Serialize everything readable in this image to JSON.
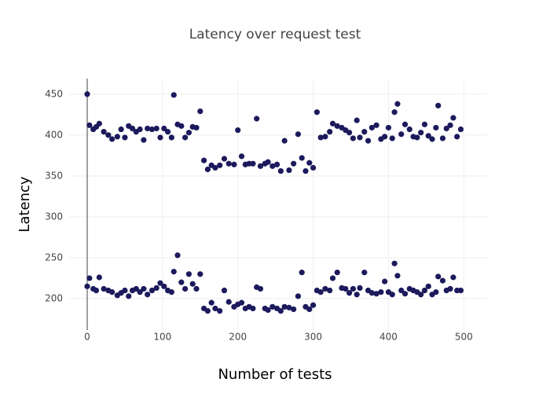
{
  "chart_data": {
    "type": "scatter",
    "title": "Latency over request test",
    "x_label": "Number of tests",
    "y_label": "Latency",
    "color": "#1c1a5c",
    "grid": true,
    "xlim": [
      -24,
      531
    ],
    "ylim": [
      161.5,
      469
    ],
    "xticks": [
      0,
      100,
      200,
      300,
      400,
      500
    ],
    "yticks": [
      200,
      250,
      300,
      350,
      400,
      450
    ],
    "x": [
      0,
      3,
      8,
      12,
      16,
      22,
      28,
      33,
      40,
      45,
      50,
      55,
      60,
      65,
      70,
      75,
      80,
      86,
      92,
      97,
      102,
      107,
      112,
      115,
      120,
      125,
      130,
      135,
      140,
      145,
      150,
      155,
      160,
      165,
      170,
      176,
      182,
      188,
      195,
      200,
      205,
      210,
      215,
      220,
      225,
      230,
      236,
      240,
      246,
      252,
      257,
      262,
      268,
      274,
      280,
      285,
      290,
      295,
      300,
      305,
      310,
      316,
      322,
      326,
      332,
      338,
      343,
      348,
      353,
      358,
      362,
      368,
      373,
      378,
      384,
      390,
      395,
      400,
      405,
      408,
      412,
      417,
      422,
      428,
      433,
      438,
      443,
      448,
      453,
      458,
      463,
      466,
      472,
      477,
      482,
      486,
      491,
      496,
      0,
      3,
      8,
      12,
      16,
      22,
      28,
      33,
      40,
      45,
      50,
      55,
      60,
      65,
      70,
      75,
      80,
      86,
      92,
      97,
      102,
      107,
      112,
      115,
      120,
      125,
      130,
      135,
      140,
      145,
      150,
      155,
      160,
      165,
      170,
      176,
      182,
      188,
      195,
      200,
      205,
      210,
      215,
      220,
      225,
      230,
      236,
      240,
      246,
      252,
      257,
      262,
      268,
      274,
      280,
      285,
      290,
      295,
      300,
      305,
      310,
      316,
      322,
      326,
      332,
      338,
      343,
      348,
      353,
      358,
      362,
      368,
      373,
      378,
      384,
      390,
      395,
      400,
      405,
      408,
      412,
      417,
      422,
      428,
      433,
      438,
      443,
      448,
      453,
      458,
      463,
      466,
      472,
      477,
      482,
      486,
      491,
      496
    ],
    "values": [
      450,
      412,
      407,
      410,
      414,
      404,
      400,
      395,
      398,
      407,
      397,
      411,
      408,
      404,
      407,
      394,
      408,
      407,
      408,
      397,
      408,
      404,
      397,
      449,
      413,
      411,
      397,
      403,
      410,
      409,
      429,
      369,
      358,
      363,
      360,
      363,
      371,
      365,
      364,
      406,
      374,
      364,
      365,
      365,
      420,
      362,
      365,
      367,
      362,
      364,
      356,
      393,
      357,
      365,
      401,
      372,
      356,
      366,
      360,
      428,
      397,
      398,
      404,
      414,
      411,
      409,
      406,
      403,
      396,
      418,
      397,
      404,
      393,
      409,
      412,
      395,
      398,
      409,
      396,
      428,
      438,
      401,
      413,
      407,
      398,
      397,
      403,
      413,
      399,
      395,
      409,
      436,
      396,
      408,
      412,
      421,
      398,
      407,
      215,
      225,
      212,
      210,
      226,
      212,
      210,
      208,
      204,
      207,
      210,
      203,
      210,
      212,
      208,
      212,
      205,
      210,
      213,
      219,
      215,
      210,
      208,
      233,
      253,
      220,
      212,
      230,
      218,
      212,
      230,
      188,
      185,
      195,
      188,
      185,
      210,
      196,
      190,
      193,
      195,
      188,
      190,
      188,
      214,
      212,
      188,
      186,
      190,
      188,
      185,
      190,
      189,
      187,
      203,
      232,
      190,
      187,
      192,
      210,
      208,
      212,
      210,
      225,
      232,
      213,
      212,
      207,
      212,
      205,
      213,
      232,
      210,
      207,
      206,
      208,
      221,
      208,
      205,
      243,
      228,
      210,
      206,
      212,
      210,
      208,
      205,
      210,
      215,
      205,
      208,
      227,
      222,
      210,
      212,
      226,
      210,
      210
    ]
  }
}
